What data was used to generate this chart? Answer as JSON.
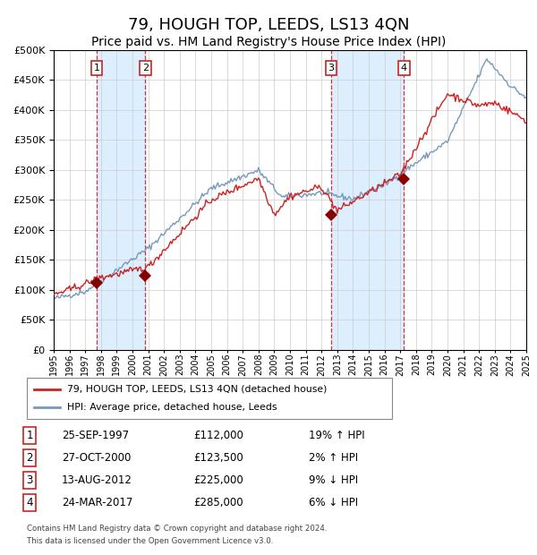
{
  "title": "79, HOUGH TOP, LEEDS, LS13 4QN",
  "subtitle": "Price paid vs. HM Land Registry's House Price Index (HPI)",
  "title_fontsize": 13,
  "subtitle_fontsize": 10,
  "bg_color": "#ffffff",
  "plot_bg_color": "#ffffff",
  "grid_color": "#cccccc",
  "hpi_line_color": "#7799bb",
  "price_line_color": "#cc2222",
  "sale_marker_color": "#880000",
  "dashed_line_color": "#cc2222",
  "shade_color": "#ddeeff",
  "ylim": [
    0,
    500000
  ],
  "ytick_step": 50000,
  "year_start": 1995,
  "year_end": 2025,
  "legend_entries": [
    "79, HOUGH TOP, LEEDS, LS13 4QN (detached house)",
    "HPI: Average price, detached house, Leeds"
  ],
  "sales": [
    {
      "num": 1,
      "date": "25-SEP-1997",
      "price": 112000,
      "year": 1997.73,
      "pct": "19%",
      "dir": "↑"
    },
    {
      "num": 2,
      "date": "27-OCT-2000",
      "price": 123500,
      "year": 2000.82,
      "pct": "2%",
      "dir": "↑"
    },
    {
      "num": 3,
      "date": "13-AUG-2012",
      "price": 225000,
      "year": 2012.62,
      "pct": "9%",
      "dir": "↓"
    },
    {
      "num": 4,
      "date": "24-MAR-2017",
      "price": 285000,
      "year": 2017.23,
      "pct": "6%",
      "dir": "↓"
    }
  ],
  "footnote1": "Contains HM Land Registry data © Crown copyright and database right 2024.",
  "footnote2": "This data is licensed under the Open Government Licence v3.0."
}
